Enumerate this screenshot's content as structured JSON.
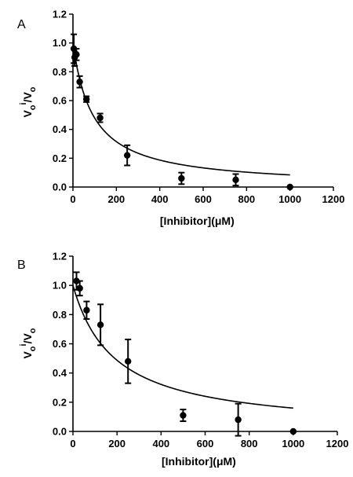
{
  "chart_data": [
    {
      "type": "scatter",
      "panel_label": "A",
      "xlabel": "[Inhibitor](μM)",
      "ylabel": {
        "main": "V",
        "sub1": "o",
        "sup": "i",
        "mid": "/V",
        "sub2": "o"
      },
      "xlim": [
        0,
        1200
      ],
      "ylim": [
        0,
        1.2
      ],
      "xticks": [
        0,
        200,
        400,
        600,
        800,
        1000,
        1200
      ],
      "yticks": [
        0.0,
        0.2,
        0.4,
        0.6,
        0.8,
        1.0,
        1.2
      ],
      "xtick_labels": [
        "0",
        "200",
        "400",
        "600",
        "800",
        "1000",
        "1200"
      ],
      "ytick_labels": [
        "0.0",
        "0.2",
        "0.4",
        "0.6",
        "0.8",
        "1.0",
        "1.2"
      ],
      "points": [
        {
          "x": 4,
          "y": 0.96,
          "err": 0.1
        },
        {
          "x": 8,
          "y": 0.9,
          "err": 0.06
        },
        {
          "x": 16,
          "y": 0.92,
          "err": 0.04
        },
        {
          "x": 31,
          "y": 0.73,
          "err": 0.04
        },
        {
          "x": 62,
          "y": 0.61,
          "err": 0.02
        },
        {
          "x": 125,
          "y": 0.48,
          "err": 0.03
        },
        {
          "x": 250,
          "y": 0.22,
          "err": 0.07
        },
        {
          "x": 500,
          "y": 0.06,
          "err": 0.04
        },
        {
          "x": 750,
          "y": 0.05,
          "err": 0.04
        },
        {
          "x": 1000,
          "y": 0.0,
          "err": 0.0
        }
      ],
      "fit": {
        "model": "y = 1/(1 + x/IC50)",
        "ic50": 92
      }
    },
    {
      "type": "scatter",
      "panel_label": "B",
      "xlabel": "[Inhibitor](μM)",
      "ylabel": {
        "main": "V",
        "sub1": "o",
        "sup": "i",
        "mid": "/V",
        "sub2": "o"
      },
      "xlim": [
        0,
        1200
      ],
      "ylim": [
        0,
        1.2
      ],
      "xticks": [
        0,
        200,
        400,
        600,
        800,
        1000,
        1200
      ],
      "yticks": [
        0.0,
        0.2,
        0.4,
        0.6,
        0.8,
        1.0,
        1.2
      ],
      "xtick_labels": [
        "0",
        "200",
        "400",
        "600",
        "800",
        "1000",
        "1200"
      ],
      "ytick_labels": [
        "0.0",
        "0.2",
        "0.4",
        "0.6",
        "0.8",
        "1.0",
        "1.2"
      ],
      "points": [
        {
          "x": 16,
          "y": 1.03,
          "err": 0.06
        },
        {
          "x": 31,
          "y": 0.98,
          "err": 0.05
        },
        {
          "x": 62,
          "y": 0.83,
          "err": 0.06
        },
        {
          "x": 125,
          "y": 0.73,
          "err": 0.14
        },
        {
          "x": 250,
          "y": 0.48,
          "err": 0.15
        },
        {
          "x": 500,
          "y": 0.11,
          "err": 0.04
        },
        {
          "x": 750,
          "y": 0.08,
          "err": 0.11
        },
        {
          "x": 1000,
          "y": 0.0,
          "err": 0.0
        }
      ],
      "fit": {
        "model": "y = 1/(1 + x/IC50)",
        "ic50": 190
      }
    }
  ]
}
